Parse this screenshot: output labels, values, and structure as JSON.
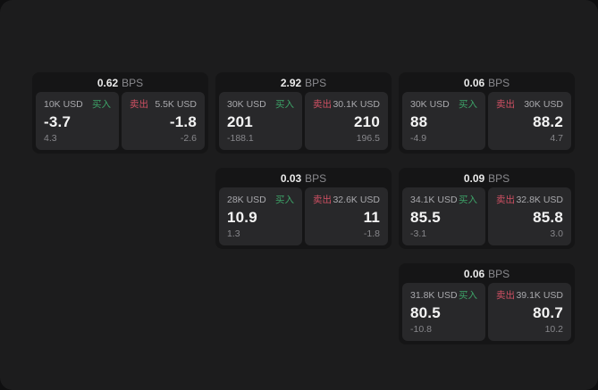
{
  "page": {
    "bps_unit": "BPS",
    "buy_label": "买入",
    "sell_label": "卖出",
    "colors": {
      "window_background": "#1c1c1d",
      "card_background": "#151516",
      "panel_background": "#28282a",
      "buy": "#3da368",
      "sell": "#cf5063"
    }
  },
  "cards": [
    {
      "bps": "0.62",
      "buy": {
        "amount": "10K USD",
        "value": "-3.7",
        "sub": "4.3"
      },
      "sell": {
        "amount": "5.5K USD",
        "value": "-1.8",
        "sub": "-2.6"
      }
    },
    {
      "bps": "2.92",
      "buy": {
        "amount": "30K USD",
        "value": "201",
        "sub": "-188.1"
      },
      "sell": {
        "amount": "30.1K USD",
        "value": "210",
        "sub": "196.5"
      }
    },
    {
      "bps": "0.06",
      "buy": {
        "amount": "30K USD",
        "value": "88",
        "sub": "-4.9"
      },
      "sell": {
        "amount": "30K USD",
        "value": "88.2",
        "sub": "4.7"
      }
    },
    {
      "bps": "0.03",
      "buy": {
        "amount": "28K USD",
        "value": "10.9",
        "sub": "1.3"
      },
      "sell": {
        "amount": "32.6K USD",
        "value": "11",
        "sub": "-1.8"
      }
    },
    {
      "bps": "0.09",
      "buy": {
        "amount": "34.1K USD",
        "value": "85.5",
        "sub": "-3.1"
      },
      "sell": {
        "amount": "32.8K USD",
        "value": "85.8",
        "sub": "3.0"
      }
    },
    {
      "bps": "0.06",
      "buy": {
        "amount": "31.8K USD",
        "value": "80.5",
        "sub": "-10.8"
      },
      "sell": {
        "amount": "39.1K USD",
        "value": "80.7",
        "sub": "10.2"
      }
    }
  ]
}
